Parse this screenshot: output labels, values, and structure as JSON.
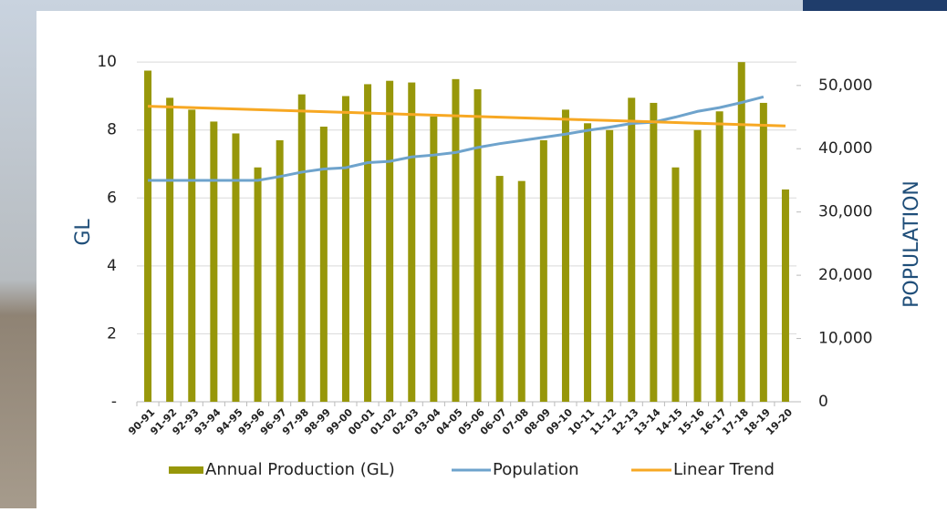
{
  "chart_data": {
    "type": "bar",
    "categories": [
      "90-91",
      "91-92",
      "92-93",
      "93-94",
      "94-95",
      "95-96",
      "96-97",
      "97-98",
      "98-99",
      "99-00",
      "00-01",
      "01-02",
      "02-03",
      "03-04",
      "04-05",
      "05-06",
      "06-07",
      "07-08",
      "08-09",
      "09-10",
      "10-11",
      "11-12",
      "12-13",
      "13-14",
      "14-15",
      "15-16",
      "16-17",
      "17-18",
      "18-19",
      "19-20"
    ],
    "series": [
      {
        "name": "Annual Production (GL)",
        "type": "bar",
        "color": "#97970a",
        "values": [
          9.75,
          8.95,
          8.6,
          8.25,
          7.9,
          6.9,
          7.7,
          9.05,
          8.1,
          9.0,
          9.35,
          9.45,
          9.4,
          8.4,
          9.5,
          9.2,
          6.65,
          6.5,
          7.7,
          8.6,
          8.2,
          8.0,
          8.95,
          8.8,
          6.9,
          8.0,
          8.55,
          10.0,
          8.8,
          6.25
        ]
      },
      {
        "name": "Population",
        "type": "line",
        "axis": "y2",
        "color": "#6ea3cc",
        "values": [
          35000,
          35000,
          35000,
          35000,
          35000,
          35000,
          35600,
          36300,
          36800,
          37000,
          37800,
          38000,
          38700,
          39000,
          39400,
          40200,
          40800,
          41300,
          41800,
          42300,
          42900,
          43400,
          44000,
          44200,
          45000,
          45900,
          46500,
          47300,
          48200,
          null
        ]
      },
      {
        "name": "Linear Trend",
        "type": "line",
        "color": "#f7a823",
        "values": [
          8.7,
          8.68,
          8.66,
          8.64,
          8.62,
          8.6,
          8.58,
          8.56,
          8.54,
          8.52,
          8.5,
          8.48,
          8.46,
          8.44,
          8.42,
          8.4,
          8.38,
          8.36,
          8.34,
          8.32,
          8.3,
          8.28,
          8.26,
          8.24,
          8.22,
          8.2,
          8.18,
          8.16,
          8.14,
          8.12
        ]
      }
    ],
    "y_label": "GL",
    "y2_label": "POPULATION",
    "ylim": [
      0,
      10.3
    ],
    "yticks": [
      {
        "value": 0,
        "label": "-"
      },
      2,
      4,
      6,
      8,
      10
    ],
    "y2lim": [
      0,
      55300
    ],
    "y2ticks": [
      0,
      {
        "value": 10000,
        "label": "10,000"
      },
      {
        "value": 20000,
        "label": "20,000"
      },
      {
        "value": 30000,
        "label": "30,000"
      },
      {
        "value": 40000,
        "label": "40,000"
      },
      {
        "value": 50000,
        "label": "50,000"
      }
    ],
    "grid": true
  }
}
